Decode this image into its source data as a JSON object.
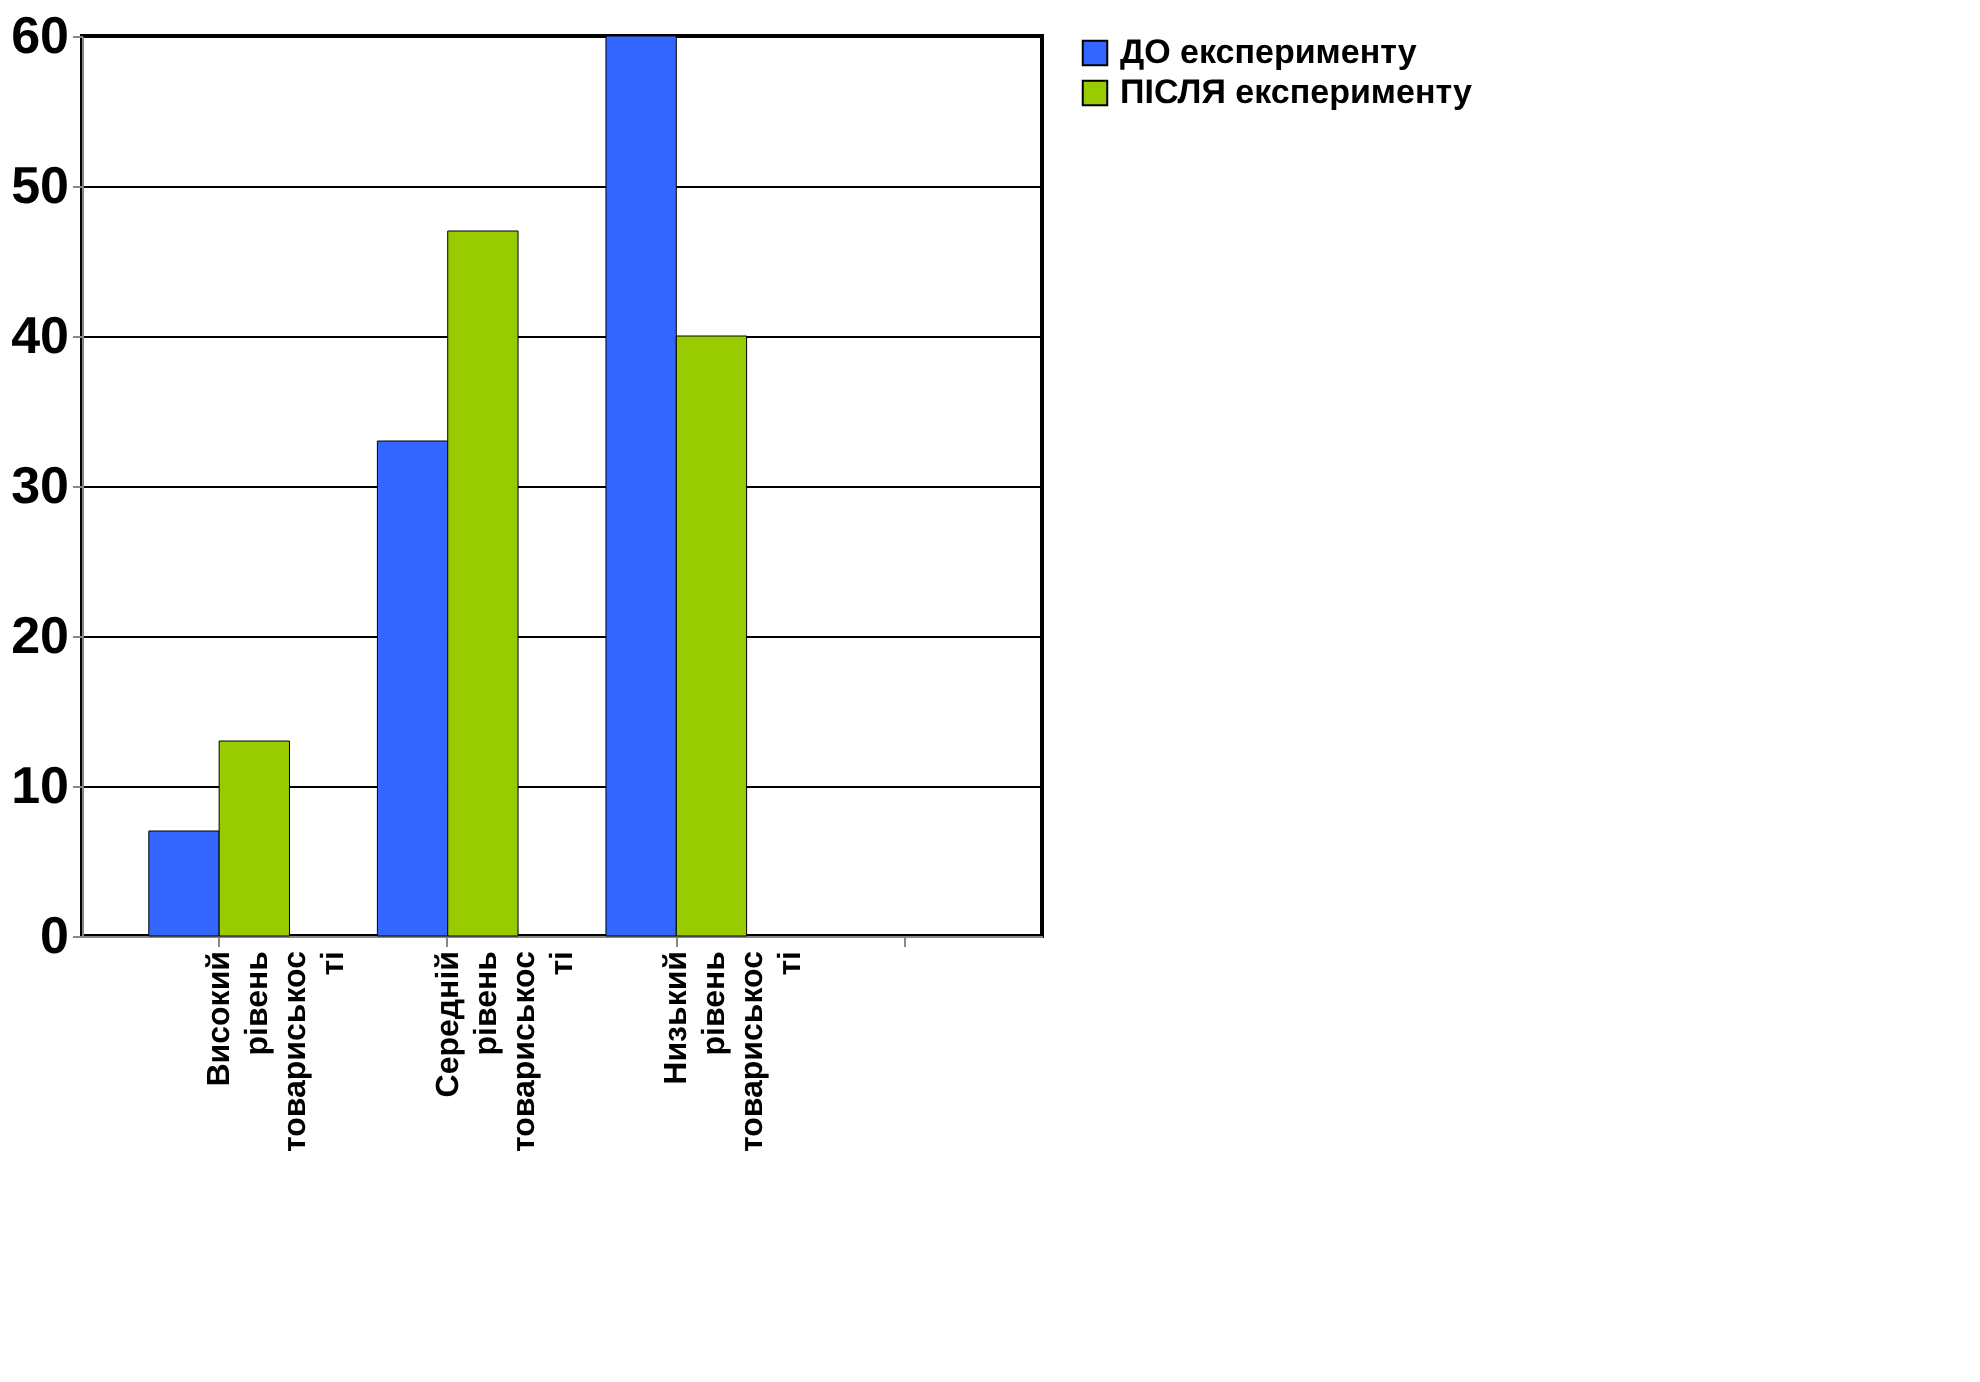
{
  "chart_data": {
    "type": "bar",
    "categories": [
      "Високий рівень товариськості",
      "Середній рівень товариськості",
      "Низький рівень товариськості",
      null
    ],
    "series": [
      {
        "name": "ДО експерименту",
        "color": "#3366ff",
        "values": [
          7,
          33,
          60,
          null
        ]
      },
      {
        "name": "ПІСЛЯ експерименту",
        "color": "#99cc00",
        "values": [
          13,
          47,
          40,
          null
        ]
      }
    ],
    "ylim": [
      0,
      60
    ],
    "yticks": [
      0,
      10,
      20,
      30,
      40,
      50,
      60
    ],
    "grid": "y",
    "legend": "right"
  }
}
